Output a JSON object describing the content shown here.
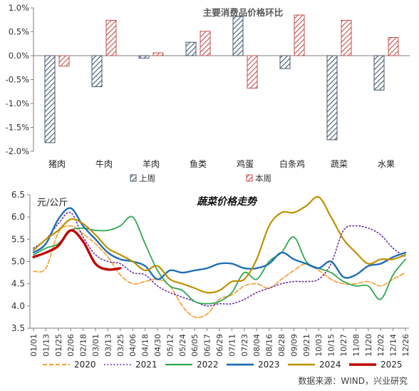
{
  "chart_data": [
    {
      "type": "bar",
      "title": "主要消费品价格环比",
      "categories": [
        "猪肉",
        "牛肉",
        "羊肉",
        "鱼类",
        "鸡蛋",
        "白条鸡",
        "蔬菜",
        "水果"
      ],
      "series": [
        {
          "name": "上周",
          "values": [
            -1.82,
            -0.65,
            -0.05,
            0.28,
            0.82,
            -0.27,
            -1.76,
            -0.72
          ],
          "color": "#44546A",
          "pattern": "diagonal-hatch"
        },
        {
          "name": "本周",
          "values": [
            -0.22,
            0.74,
            0.06,
            0.51,
            -0.68,
            0.85,
            0.74,
            0.38
          ],
          "color": "#C0504D",
          "pattern": "diagonal-hatch"
        }
      ],
      "ylim": [
        -2.0,
        1.0
      ],
      "yticks": [
        "-2.0%",
        "-1.5%",
        "-1.0%",
        "-0.5%",
        "0.0%",
        "0.5%",
        "1.0%"
      ],
      "ytick_values": [
        -2.0,
        -1.5,
        -1.0,
        -0.5,
        0.0,
        0.5,
        1.0
      ],
      "legend_placement": "bottom",
      "grid": false
    },
    {
      "type": "line",
      "title": "蔬菜价格走势",
      "ylabel": "元/公斤",
      "ylim": [
        3.5,
        6.5
      ],
      "yticks": [
        "3.5",
        "4.0",
        "4.5",
        "5.0",
        "5.5",
        "6.0",
        "6.5"
      ],
      "ytick_values": [
        3.5,
        4.0,
        4.5,
        5.0,
        5.5,
        6.0,
        6.5
      ],
      "x_dates": [
        "01/01",
        "01/13",
        "01/25",
        "02/06",
        "02/18",
        "03/01",
        "03/13",
        "03/25",
        "04/06",
        "04/18",
        "04/30",
        "05/12",
        "05/24",
        "06/05",
        "06/17",
        "06/29",
        "07/11",
        "07/23",
        "08/04",
        "08/16",
        "08/28",
        "09/09",
        "09/21",
        "10/03",
        "10/15",
        "10/27",
        "11/08",
        "11/20",
        "12/02",
        "12/14",
        "12/26"
      ],
      "legend_placement": "bottom",
      "grid": false,
      "series": [
        {
          "name": "2020",
          "color": "#F4A540",
          "style": "dashed",
          "width": 1.8,
          "values": [
            4.78,
            4.85,
            5.65,
            5.8,
            5.62,
            5.4,
            5.1,
            4.7,
            4.5,
            4.55,
            4.6,
            4.45,
            4.0,
            3.75,
            3.82,
            4.15,
            4.25,
            4.45,
            4.5,
            4.4,
            4.6,
            4.8,
            4.95,
            4.8,
            4.6,
            4.5,
            4.5,
            4.55,
            4.45,
            4.6,
            4.75
          ]
        },
        {
          "name": "2021",
          "color": "#7030A0",
          "style": "dotted",
          "width": 1.6,
          "values": [
            5.3,
            5.5,
            5.85,
            6.1,
            5.55,
            5.15,
            5.0,
            4.95,
            4.75,
            4.7,
            4.45,
            4.3,
            4.2,
            4.1,
            4.0,
            4.05,
            4.05,
            4.15,
            4.3,
            4.4,
            4.5,
            4.55,
            4.55,
            4.6,
            4.95,
            5.7,
            5.8,
            5.75,
            5.6,
            5.3,
            5.1
          ]
        },
        {
          "name": "2022",
          "color": "#2EA84F",
          "style": "solid",
          "width": 1.8,
          "values": [
            5.15,
            5.3,
            5.4,
            5.7,
            5.75,
            5.7,
            5.7,
            5.8,
            6.0,
            5.4,
            4.8,
            4.45,
            4.35,
            4.1,
            4.05,
            4.1,
            4.3,
            4.75,
            4.6,
            5.0,
            5.2,
            5.55,
            5.0,
            4.85,
            4.75,
            4.55,
            4.45,
            4.45,
            4.15,
            4.7,
            5.05
          ]
        },
        {
          "name": "2023",
          "color": "#1F6FB5",
          "style": "solid",
          "width": 2.4,
          "values": [
            5.2,
            5.4,
            5.95,
            6.2,
            5.8,
            5.5,
            5.2,
            5.05,
            5.0,
            4.9,
            4.6,
            4.8,
            4.75,
            4.8,
            4.85,
            4.95,
            4.95,
            4.85,
            4.85,
            4.95,
            5.2,
            5.05,
            4.95,
            4.85,
            5.0,
            4.65,
            4.7,
            4.9,
            4.95,
            5.1,
            5.2
          ]
        },
        {
          "name": "2024",
          "color": "#BF9000",
          "style": "solid",
          "width": 2.2,
          "values": [
            5.25,
            5.5,
            5.7,
            5.95,
            5.85,
            5.6,
            5.3,
            5.15,
            5.0,
            4.8,
            4.9,
            4.6,
            4.5,
            4.4,
            4.3,
            4.35,
            4.55,
            4.6,
            5.05,
            5.8,
            6.1,
            6.1,
            6.25,
            6.45,
            6.0,
            5.5,
            5.2,
            4.95,
            5.05,
            5.05,
            5.15
          ]
        },
        {
          "name": "2025",
          "color": "#C00000",
          "style": "solid",
          "width": 3.4,
          "values": [
            5.1,
            5.2,
            5.35,
            5.7,
            5.45,
            4.95,
            4.82,
            4.85
          ]
        }
      ]
    }
  ],
  "source": "数据来源：WIND，兴业研究"
}
